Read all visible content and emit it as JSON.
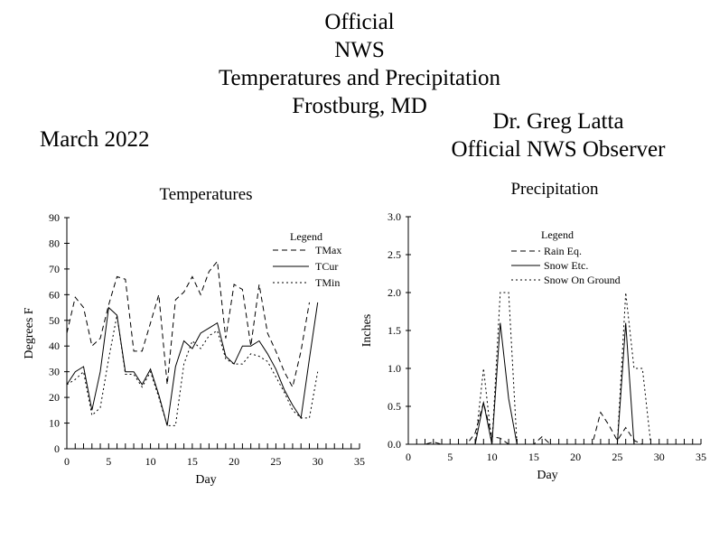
{
  "header": {
    "title_lines": [
      "Official",
      "NWS",
      "Temperatures and Precipitation",
      "Frostburg, MD"
    ],
    "month": "March 2022",
    "observer_name": "Dr. Greg Latta",
    "observer_role": "Official NWS Observer"
  },
  "colors": {
    "background": "#ffffff",
    "ink": "#000000"
  },
  "chart_data": [
    {
      "type": "line",
      "title": "Temperatures",
      "xlabel": "Day",
      "ylabel": "Degrees F",
      "xlim": [
        0,
        35
      ],
      "ylim": [
        0,
        90
      ],
      "xticks": [
        0,
        5,
        10,
        15,
        20,
        25,
        30,
        35
      ],
      "yticks": [
        0,
        10,
        20,
        30,
        40,
        50,
        60,
        70,
        80,
        90
      ],
      "legend_title": "Legend",
      "legend_position": "top-right",
      "x": [
        0,
        1,
        2,
        3,
        4,
        5,
        6,
        7,
        8,
        9,
        10,
        11,
        12,
        13,
        14,
        15,
        16,
        17,
        18,
        19,
        20,
        21,
        22,
        23,
        24,
        25,
        26,
        27,
        28,
        29,
        30
      ],
      "series": [
        {
          "name": "TMax",
          "style": "dashed",
          "values": [
            45,
            59,
            55,
            40,
            43,
            56,
            67,
            66,
            38,
            38,
            49,
            60,
            25,
            58,
            61,
            67,
            60,
            69,
            73,
            43,
            64,
            62,
            40,
            64,
            45,
            38,
            30,
            24,
            38,
            57,
            null
          ]
        },
        {
          "name": "TCur",
          "style": "solid",
          "values": [
            25,
            30,
            32,
            15,
            30,
            55,
            52,
            30,
            30,
            25,
            31,
            21,
            9,
            32,
            42,
            39,
            45,
            47,
            49,
            36,
            33,
            40,
            40,
            42,
            37,
            31,
            23,
            17,
            12,
            35,
            57
          ]
        },
        {
          "name": "TMin",
          "style": "dotted",
          "values": [
            25,
            27,
            30,
            13,
            16,
            35,
            52,
            29,
            29,
            24,
            30,
            20,
            9,
            9,
            33,
            42,
            39,
            44,
            46,
            35,
            33,
            33,
            37,
            36,
            34,
            28,
            22,
            15,
            12,
            12,
            30
          ]
        }
      ]
    },
    {
      "type": "line",
      "title": "Precipitation",
      "xlabel": "Day",
      "ylabel": "Inches",
      "xlim": [
        0,
        35
      ],
      "ylim": [
        0,
        3.0
      ],
      "xticks": [
        0,
        5,
        10,
        15,
        20,
        25,
        30,
        35
      ],
      "yticks": [
        "0.0",
        "0.5",
        "1.0",
        "1.5",
        "2.0",
        "2.5",
        "3.0"
      ],
      "legend_title": "Legend",
      "legend_position": "top-center",
      "x": [
        0,
        1,
        2,
        3,
        4,
        5,
        6,
        7,
        8,
        9,
        10,
        11,
        12,
        13,
        14,
        15,
        16,
        17,
        18,
        19,
        20,
        21,
        22,
        23,
        24,
        25,
        26,
        27,
        28,
        29,
        30
      ],
      "series": [
        {
          "name": "Rain Eq.",
          "style": "dashed",
          "values": [
            0,
            0,
            0,
            0.03,
            0,
            0,
            0,
            0,
            0.15,
            0.55,
            0.1,
            0.08,
            0,
            0,
            0,
            0,
            0.1,
            0,
            0,
            0,
            0,
            0,
            0,
            0.42,
            0.25,
            0.05,
            0.22,
            0.05,
            0,
            0,
            0
          ]
        },
        {
          "name": "Snow Etc.",
          "style": "solid",
          "values": [
            0,
            0,
            0,
            0,
            0,
            0,
            0,
            0,
            0,
            0.55,
            0,
            1.6,
            0.6,
            0,
            0,
            0,
            0,
            0,
            0,
            0,
            0,
            0,
            0,
            0,
            0,
            0,
            1.6,
            0,
            0,
            0,
            0
          ]
        },
        {
          "name": "Snow On Ground",
          "style": "dotted",
          "values": [
            0,
            0,
            0,
            0,
            0,
            0,
            0,
            0,
            0,
            1.0,
            0,
            2.0,
            2.0,
            0,
            0,
            0,
            0,
            0,
            0,
            0,
            0,
            0,
            0,
            0,
            0,
            0,
            2.0,
            1.0,
            1.0,
            0,
            0
          ]
        }
      ]
    }
  ]
}
